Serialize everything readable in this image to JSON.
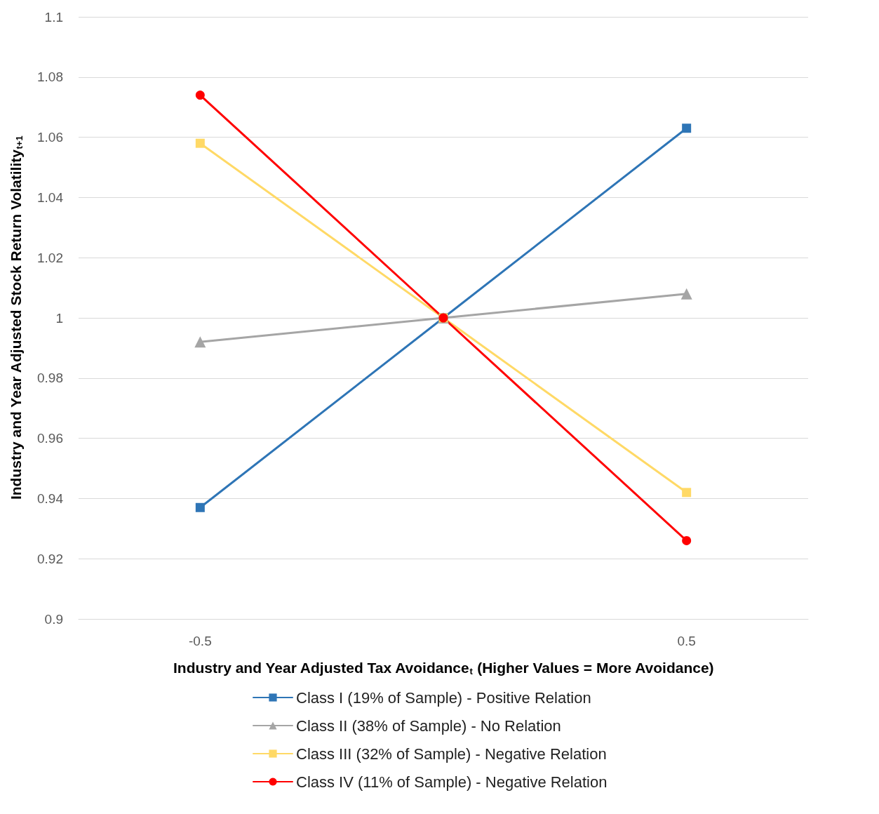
{
  "chart_data": {
    "type": "line",
    "xlabel": "Industry and Year Adjusted Tax Avoidance$_{t}$ (Higher Values = More Avoidance)",
    "ylabel": "Industry and Year Adjusted Stock Return Volatility$_{t+1}$",
    "categories": [
      "-0.5",
      null,
      "0.5"
    ],
    "series": [
      {
        "name": "Class I (19% of Sample) - Positive Relation",
        "color": "#2e75b6",
        "marker": "square",
        "values": [
          0.937,
          1,
          1.063
        ]
      },
      {
        "name": "Class II (38% of Sample) - No Relation",
        "color": "#a5a5a5",
        "marker": "triangle",
        "values": [
          0.992,
          1,
          1.008
        ]
      },
      {
        "name": "Class III (32% of Sample) - Negative Relation",
        "color": "#ffd966",
        "marker": "square",
        "values": [
          1.058,
          1,
          0.942
        ]
      },
      {
        "name": "Class IV (11% of Sample) - Negative Relation",
        "color": "#ff0000",
        "marker": "circle",
        "values": [
          1.074,
          1,
          0.926
        ]
      }
    ],
    "ylim": [
      0.9,
      1.1
    ],
    "yticks": [
      0.9,
      0.92,
      0.94,
      0.96,
      0.98,
      1,
      1.02,
      1.04,
      1.06,
      1.08,
      1.1
    ],
    "grid": "y",
    "legend": "bottom",
    "line_style": "solid"
  }
}
